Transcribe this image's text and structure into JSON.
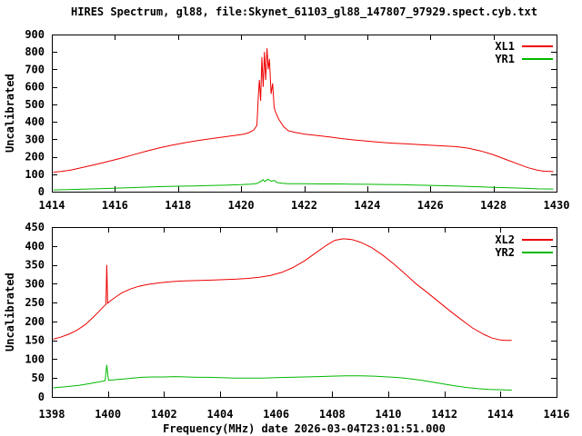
{
  "title": "HIRES Spectrum, gl88, file:Skynet_61103_gl88_147807_97929.spect.cyb.txt",
  "chart_data": [
    {
      "type": "line",
      "ylabel": "Uncalibrated",
      "xlabel": "",
      "x_range": [
        1414,
        1430
      ],
      "y_range": [
        0,
        900
      ],
      "x_ticks": [
        1414,
        1416,
        1418,
        1420,
        1422,
        1424,
        1426,
        1428,
        1430
      ],
      "y_ticks": [
        0,
        100,
        200,
        300,
        400,
        500,
        600,
        700,
        800,
        900
      ],
      "grid": false,
      "legend_position": "top-right",
      "series": [
        {
          "name": "XL1",
          "color": "#ee0000",
          "points": [
            [
              1414.05,
              112
            ],
            [
              1414.3,
              116
            ],
            [
              1414.6,
              124
            ],
            [
              1415,
              140
            ],
            [
              1415.4,
              156
            ],
            [
              1415.8,
              174
            ],
            [
              1416.2,
              192
            ],
            [
              1416.6,
              212
            ],
            [
              1417,
              232
            ],
            [
              1417.4,
              250
            ],
            [
              1417.8,
              266
            ],
            [
              1418.2,
              280
            ],
            [
              1418.6,
              292
            ],
            [
              1419,
              302
            ],
            [
              1419.4,
              312
            ],
            [
              1419.8,
              322
            ],
            [
              1420.1,
              330
            ],
            [
              1420.25,
              338
            ],
            [
              1420.4,
              352
            ],
            [
              1420.5,
              380
            ],
            [
              1420.55,
              560
            ],
            [
              1420.58,
              640
            ],
            [
              1420.62,
              520
            ],
            [
              1420.66,
              770
            ],
            [
              1420.7,
              600
            ],
            [
              1420.74,
              800
            ],
            [
              1420.78,
              640
            ],
            [
              1420.82,
              821
            ],
            [
              1420.86,
              700
            ],
            [
              1420.9,
              760
            ],
            [
              1420.95,
              560
            ],
            [
              1421,
              620
            ],
            [
              1421.05,
              480
            ],
            [
              1421.1,
              452
            ],
            [
              1421.2,
              412
            ],
            [
              1421.35,
              372
            ],
            [
              1421.5,
              348
            ],
            [
              1421.7,
              340
            ],
            [
              1422,
              330
            ],
            [
              1422.4,
              322
            ],
            [
              1422.8,
              313
            ],
            [
              1423.2,
              304
            ],
            [
              1423.6,
              296
            ],
            [
              1424,
              289
            ],
            [
              1424.4,
              283
            ],
            [
              1424.8,
              278
            ],
            [
              1425.2,
              274
            ],
            [
              1425.6,
              270
            ],
            [
              1426,
              266
            ],
            [
              1426.4,
              262
            ],
            [
              1426.8,
              258
            ],
            [
              1427.2,
              249
            ],
            [
              1427.6,
              233
            ],
            [
              1428,
              211
            ],
            [
              1428.4,
              184
            ],
            [
              1428.8,
              157
            ],
            [
              1429.1,
              137
            ],
            [
              1429.4,
              123
            ],
            [
              1429.6,
              117
            ],
            [
              1429.9,
              115
            ]
          ]
        },
        {
          "name": "YR1",
          "color": "#00b900",
          "points": [
            [
              1414.05,
              10
            ],
            [
              1414.5,
              12
            ],
            [
              1415,
              14
            ],
            [
              1415.5,
              17
            ],
            [
              1416,
              20
            ],
            [
              1416.5,
              23
            ],
            [
              1417,
              26
            ],
            [
              1417.5,
              29
            ],
            [
              1418,
              31
            ],
            [
              1418.5,
              33
            ],
            [
              1419,
              35
            ],
            [
              1419.5,
              37
            ],
            [
              1420,
              40
            ],
            [
              1420.3,
              43
            ],
            [
              1420.5,
              47
            ],
            [
              1420.6,
              56
            ],
            [
              1420.7,
              68
            ],
            [
              1420.75,
              58
            ],
            [
              1420.85,
              72
            ],
            [
              1420.95,
              60
            ],
            [
              1421.05,
              64
            ],
            [
              1421.15,
              52
            ],
            [
              1421.3,
              48
            ],
            [
              1421.5,
              46
            ],
            [
              1422,
              45
            ],
            [
              1422.5,
              44
            ],
            [
              1423,
              44
            ],
            [
              1423.5,
              43
            ],
            [
              1424,
              42
            ],
            [
              1424.5,
              41
            ],
            [
              1425,
              40
            ],
            [
              1425.5,
              38
            ],
            [
              1426,
              36
            ],
            [
              1426.5,
              34
            ],
            [
              1427,
              31
            ],
            [
              1427.5,
              28
            ],
            [
              1428,
              25
            ],
            [
              1428.5,
              22
            ],
            [
              1429,
              19
            ],
            [
              1429.4,
              16
            ],
            [
              1429.9,
              15
            ]
          ]
        }
      ]
    },
    {
      "type": "line",
      "ylabel": "Uncalibrated",
      "xlabel": "Frequency(MHz) date 2026-03-04T23:01:51.000",
      "x_range": [
        1398,
        1416
      ],
      "y_range": [
        0,
        450
      ],
      "x_ticks": [
        1398,
        1400,
        1402,
        1404,
        1406,
        1408,
        1410,
        1412,
        1414,
        1416
      ],
      "y_ticks": [
        0,
        50,
        100,
        150,
        200,
        250,
        300,
        350,
        400,
        450
      ],
      "grid": false,
      "legend_position": "top-right",
      "series": [
        {
          "name": "XL2",
          "color": "#ee0000",
          "points": [
            [
              1398.05,
              153
            ],
            [
              1398.3,
              158
            ],
            [
              1398.6,
              166
            ],
            [
              1398.9,
              177
            ],
            [
              1399.2,
              192
            ],
            [
              1399.5,
              213
            ],
            [
              1399.7,
              228
            ],
            [
              1399.85,
              240
            ],
            [
              1399.93,
              245
            ],
            [
              1399.96,
              350
            ],
            [
              1399.99,
              248
            ],
            [
              1400.1,
              255
            ],
            [
              1400.3,
              266
            ],
            [
              1400.5,
              276
            ],
            [
              1400.8,
              286
            ],
            [
              1401.1,
              293
            ],
            [
              1401.4,
              298
            ],
            [
              1401.8,
              302
            ],
            [
              1402.2,
              305
            ],
            [
              1402.6,
              307
            ],
            [
              1403,
              308
            ],
            [
              1403.4,
              309
            ],
            [
              1403.8,
              310
            ],
            [
              1404.2,
              311
            ],
            [
              1404.6,
              312
            ],
            [
              1405,
              314
            ],
            [
              1405.4,
              317
            ],
            [
              1405.8,
              322
            ],
            [
              1406.2,
              330
            ],
            [
              1406.6,
              343
            ],
            [
              1407,
              360
            ],
            [
              1407.4,
              381
            ],
            [
              1407.8,
              402
            ],
            [
              1408.1,
              415
            ],
            [
              1408.4,
              419
            ],
            [
              1408.7,
              417
            ],
            [
              1409,
              410
            ],
            [
              1409.4,
              396
            ],
            [
              1409.8,
              376
            ],
            [
              1410.2,
              352
            ],
            [
              1410.6,
              326
            ],
            [
              1411,
              299
            ],
            [
              1411.4,
              276
            ],
            [
              1411.8,
              252
            ],
            [
              1412.2,
              228
            ],
            [
              1412.6,
              205
            ],
            [
              1413,
              183
            ],
            [
              1413.4,
              166
            ],
            [
              1413.7,
              156
            ],
            [
              1414,
              151
            ],
            [
              1414.2,
              150
            ],
            [
              1414.4,
              150
            ]
          ]
        },
        {
          "name": "YR2",
          "color": "#00b900",
          "points": [
            [
              1398.05,
              24
            ],
            [
              1398.5,
              27
            ],
            [
              1399,
              31
            ],
            [
              1399.4,
              36
            ],
            [
              1399.7,
              40
            ],
            [
              1399.9,
              43
            ],
            [
              1399.96,
              85
            ],
            [
              1400.02,
              44
            ],
            [
              1400.3,
              46
            ],
            [
              1400.6,
              48
            ],
            [
              1400.9,
              50
            ],
            [
              1401.2,
              52
            ],
            [
              1401.6,
              53
            ],
            [
              1402,
              53
            ],
            [
              1402.4,
              54
            ],
            [
              1402.8,
              53
            ],
            [
              1403.2,
              52
            ],
            [
              1403.6,
              52
            ],
            [
              1404,
              51
            ],
            [
              1404.5,
              50
            ],
            [
              1405,
              50
            ],
            [
              1405.5,
              50
            ],
            [
              1406,
              51
            ],
            [
              1406.5,
              52
            ],
            [
              1407,
              53
            ],
            [
              1407.5,
              54
            ],
            [
              1408,
              55
            ],
            [
              1408.5,
              56
            ],
            [
              1409,
              56
            ],
            [
              1409.5,
              55
            ],
            [
              1410,
              53
            ],
            [
              1410.4,
              51
            ],
            [
              1410.8,
              48
            ],
            [
              1411.2,
              44
            ],
            [
              1411.6,
              39
            ],
            [
              1412,
              34
            ],
            [
              1412.4,
              29
            ],
            [
              1412.8,
              25
            ],
            [
              1413.2,
              22
            ],
            [
              1413.6,
              20
            ],
            [
              1414,
              19
            ],
            [
              1414.4,
              18
            ]
          ]
        }
      ]
    }
  ]
}
